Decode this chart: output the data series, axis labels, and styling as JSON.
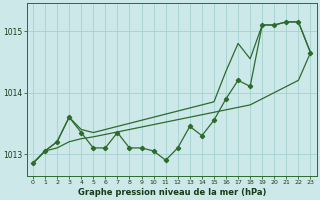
{
  "xlabel": "Graphe pression niveau de la mer (hPa)",
  "bg_color": "#cce8e8",
  "grid_color": "#9ecece",
  "line_color": "#2d6b2d",
  "x_ticks": [
    0,
    1,
    2,
    3,
    4,
    5,
    6,
    7,
    8,
    9,
    10,
    11,
    12,
    13,
    14,
    15,
    16,
    17,
    18,
    19,
    20,
    21,
    22,
    23
  ],
  "ylim": [
    1012.65,
    1015.45
  ],
  "yticks": [
    1013,
    1014,
    1015
  ],
  "line_zigzag": [
    1012.85,
    1013.05,
    1013.2,
    1013.6,
    1013.35,
    1013.1,
    1013.1,
    1013.35,
    1013.1,
    1013.1,
    1013.05,
    1012.9,
    1013.1,
    1013.45,
    1013.3,
    1013.55,
    1013.9,
    1014.2,
    1014.1,
    1015.1,
    1015.1,
    1015.15,
    1015.15,
    1014.65
  ],
  "line_upper": [
    1012.85,
    1013.05,
    1013.2,
    1013.6,
    1013.4,
    1013.35,
    1013.4,
    1013.45,
    1013.5,
    1013.55,
    1013.6,
    1013.65,
    1013.7,
    1013.75,
    1013.8,
    1013.85,
    1014.35,
    1014.8,
    1014.55,
    1015.1,
    1015.1,
    1015.15,
    1015.15,
    1014.65
  ],
  "line_lower": [
    1012.85,
    1013.05,
    1013.1,
    1013.2,
    1013.25,
    1013.28,
    1013.32,
    1013.36,
    1013.4,
    1013.44,
    1013.48,
    1013.52,
    1013.56,
    1013.6,
    1013.64,
    1013.68,
    1013.72,
    1013.76,
    1013.8,
    1013.9,
    1014.0,
    1014.1,
    1014.2,
    1014.65
  ],
  "xtick_fontsize": 4.5,
  "ytick_fontsize": 5.5,
  "xlabel_fontsize": 6.0
}
